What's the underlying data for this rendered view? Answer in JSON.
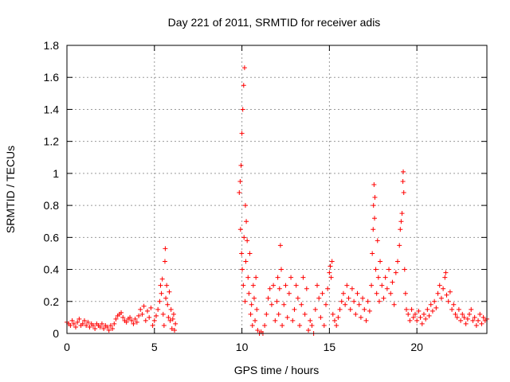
{
  "chart_data": {
    "type": "scatter",
    "title": "Day 221 of 2011, SRMTID for receiver adis",
    "xlabel": "GPS time / hours",
    "ylabel": "SRMTID / TECUs",
    "xlim": [
      0,
      24
    ],
    "ylim": [
      0,
      1.8
    ],
    "x_ticks": [
      0,
      5,
      10,
      15,
      20
    ],
    "x_tick_labels": [
      "0",
      "5",
      "10",
      "15",
      "20"
    ],
    "y_ticks": [
      0,
      0.2,
      0.4,
      0.6,
      0.8,
      1.0,
      1.2,
      1.4,
      1.6,
      1.8
    ],
    "y_tick_labels": [
      "0",
      "0.2",
      "0.4",
      "0.6",
      "0.8",
      "1",
      "1.2",
      "1.4",
      "1.6",
      "1.8"
    ],
    "grid": true,
    "marker": "+",
    "series": [
      {
        "name": "SRMTID",
        "color": "#ff0000",
        "points": [
          [
            0.0,
            0.07
          ],
          [
            0.1,
            0.06
          ],
          [
            0.2,
            0.05
          ],
          [
            0.3,
            0.08
          ],
          [
            0.4,
            0.06
          ],
          [
            0.5,
            0.04
          ],
          [
            0.6,
            0.07
          ],
          [
            0.7,
            0.09
          ],
          [
            0.8,
            0.05
          ],
          [
            0.9,
            0.06
          ],
          [
            1.0,
            0.08
          ],
          [
            1.1,
            0.05
          ],
          [
            1.2,
            0.07
          ],
          [
            1.3,
            0.04
          ],
          [
            1.4,
            0.06
          ],
          [
            1.5,
            0.05
          ],
          [
            1.6,
            0.03
          ],
          [
            1.7,
            0.06
          ],
          [
            1.8,
            0.05
          ],
          [
            1.9,
            0.04
          ],
          [
            2.0,
            0.06
          ],
          [
            2.1,
            0.03
          ],
          [
            2.2,
            0.05
          ],
          [
            2.3,
            0.04
          ],
          [
            2.4,
            0.02
          ],
          [
            2.5,
            0.05
          ],
          [
            2.6,
            0.03
          ],
          [
            2.7,
            0.06
          ],
          [
            2.8,
            0.09
          ],
          [
            2.9,
            0.11
          ],
          [
            3.0,
            0.12
          ],
          [
            3.1,
            0.13
          ],
          [
            3.2,
            0.1
          ],
          [
            3.3,
            0.08
          ],
          [
            3.4,
            0.07
          ],
          [
            3.5,
            0.09
          ],
          [
            3.6,
            0.1
          ],
          [
            3.7,
            0.08
          ],
          [
            3.8,
            0.06
          ],
          [
            3.9,
            0.09
          ],
          [
            4.0,
            0.07
          ],
          [
            4.1,
            0.11
          ],
          [
            4.2,
            0.15
          ],
          [
            4.3,
            0.12
          ],
          [
            4.4,
            0.17
          ],
          [
            4.5,
            0.08
          ],
          [
            4.6,
            0.14
          ],
          [
            4.7,
            0.1
          ],
          [
            4.8,
            0.16
          ],
          [
            4.9,
            0.05
          ],
          [
            5.0,
            0.08
          ],
          [
            5.1,
            0.11
          ],
          [
            5.2,
            0.15
          ],
          [
            5.3,
            0.2
          ],
          [
            5.35,
            0.3
          ],
          [
            5.4,
            0.25
          ],
          [
            5.45,
            0.34
          ],
          [
            5.5,
            0.12
          ],
          [
            5.55,
            0.05
          ],
          [
            5.6,
            0.45
          ],
          [
            5.62,
            0.53
          ],
          [
            5.65,
            0.22
          ],
          [
            5.7,
            0.3
          ],
          [
            5.75,
            0.18
          ],
          [
            5.8,
            0.1
          ],
          [
            5.85,
            0.26
          ],
          [
            5.9,
            0.08
          ],
          [
            5.95,
            0.15
          ],
          [
            6.0,
            0.03
          ],
          [
            6.05,
            0.09
          ],
          [
            6.1,
            0.12
          ],
          [
            6.15,
            0.02
          ],
          [
            6.2,
            0.06
          ],
          [
            9.85,
            0.88
          ],
          [
            9.9,
            0.95
          ],
          [
            9.92,
            0.65
          ],
          [
            9.95,
            1.05
          ],
          [
            9.98,
            0.5
          ],
          [
            10.0,
            1.25
          ],
          [
            10.02,
            0.4
          ],
          [
            10.05,
            1.4
          ],
          [
            10.08,
            0.3
          ],
          [
            10.1,
            1.55
          ],
          [
            10.12,
            0.6
          ],
          [
            10.15,
            1.66
          ],
          [
            10.18,
            0.2
          ],
          [
            10.2,
            0.8
          ],
          [
            10.22,
            0.45
          ],
          [
            10.25,
            0.7
          ],
          [
            10.3,
            0.58
          ],
          [
            10.35,
            0.35
          ],
          [
            10.4,
            0.25
          ],
          [
            10.45,
            0.5
          ],
          [
            10.5,
            0.12
          ],
          [
            10.55,
            0.18
          ],
          [
            10.6,
            0.05
          ],
          [
            10.65,
            0.3
          ],
          [
            10.7,
            0.22
          ],
          [
            10.75,
            0.08
          ],
          [
            10.8,
            0.35
          ],
          [
            10.85,
            0.15
          ],
          [
            10.9,
            0.02
          ],
          [
            11.0,
            0.0
          ],
          [
            11.1,
            0.01
          ],
          [
            11.2,
            0.0
          ],
          [
            11.3,
            0.05
          ],
          [
            11.4,
            0.12
          ],
          [
            11.5,
            0.22
          ],
          [
            11.6,
            0.28
          ],
          [
            11.7,
            0.18
          ],
          [
            11.8,
            0.3
          ],
          [
            11.9,
            0.08
          ],
          [
            12.0,
            0.2
          ],
          [
            12.05,
            0.35
          ],
          [
            12.1,
            0.12
          ],
          [
            12.15,
            0.28
          ],
          [
            12.2,
            0.55
          ],
          [
            12.25,
            0.4
          ],
          [
            12.3,
            0.05
          ],
          [
            12.4,
            0.18
          ],
          [
            12.5,
            0.3
          ],
          [
            12.6,
            0.1
          ],
          [
            12.7,
            0.25
          ],
          [
            12.8,
            0.35
          ],
          [
            12.9,
            0.08
          ],
          [
            13.0,
            0.15
          ],
          [
            13.1,
            0.3
          ],
          [
            13.2,
            0.22
          ],
          [
            13.3,
            0.05
          ],
          [
            13.4,
            0.18
          ],
          [
            13.5,
            0.35
          ],
          [
            13.6,
            0.12
          ],
          [
            13.7,
            0.28
          ],
          [
            13.8,
            0.02
          ],
          [
            13.9,
            0.08
          ],
          [
            14.0,
            0.05
          ],
          [
            14.1,
            0.0
          ],
          [
            14.2,
            0.15
          ],
          [
            14.3,
            0.3
          ],
          [
            14.4,
            0.22
          ],
          [
            14.5,
            0.1
          ],
          [
            14.6,
            0.25
          ],
          [
            14.7,
            0.05
          ],
          [
            14.8,
            0.18
          ],
          [
            14.9,
            0.28
          ],
          [
            15.0,
            0.38
          ],
          [
            15.05,
            0.42
          ],
          [
            15.1,
            0.35
          ],
          [
            15.15,
            0.45
          ],
          [
            15.2,
            0.12
          ],
          [
            15.3,
            0.08
          ],
          [
            15.4,
            0.05
          ],
          [
            15.5,
            0.1
          ],
          [
            15.6,
            0.15
          ],
          [
            15.7,
            0.2
          ],
          [
            15.8,
            0.25
          ],
          [
            15.9,
            0.18
          ],
          [
            16.0,
            0.3
          ],
          [
            16.1,
            0.22
          ],
          [
            16.2,
            0.15
          ],
          [
            16.3,
            0.28
          ],
          [
            16.4,
            0.2
          ],
          [
            16.5,
            0.12
          ],
          [
            16.6,
            0.25
          ],
          [
            16.7,
            0.18
          ],
          [
            16.8,
            0.1
          ],
          [
            16.9,
            0.22
          ],
          [
            17.0,
            0.15
          ],
          [
            17.1,
            0.08
          ],
          [
            17.2,
            0.2
          ],
          [
            17.3,
            0.14
          ],
          [
            17.4,
            0.3
          ],
          [
            17.45,
            0.5
          ],
          [
            17.5,
            0.65
          ],
          [
            17.52,
            0.8
          ],
          [
            17.55,
            0.93
          ],
          [
            17.58,
            0.72
          ],
          [
            17.6,
            0.85
          ],
          [
            17.65,
            0.4
          ],
          [
            17.7,
            0.25
          ],
          [
            17.75,
            0.58
          ],
          [
            17.8,
            0.35
          ],
          [
            17.85,
            0.2
          ],
          [
            17.9,
            0.45
          ],
          [
            18.0,
            0.3
          ],
          [
            18.1,
            0.22
          ],
          [
            18.2,
            0.35
          ],
          [
            18.3,
            0.28
          ],
          [
            18.4,
            0.4
          ],
          [
            18.5,
            0.25
          ],
          [
            18.6,
            0.32
          ],
          [
            18.7,
            0.18
          ],
          [
            18.8,
            0.38
          ],
          [
            18.9,
            0.45
          ],
          [
            19.0,
            0.55
          ],
          [
            19.05,
            0.65
          ],
          [
            19.1,
            0.7
          ],
          [
            19.15,
            0.75
          ],
          [
            19.2,
            0.95
          ],
          [
            19.22,
            1.01
          ],
          [
            19.25,
            0.88
          ],
          [
            19.3,
            0.4
          ],
          [
            19.35,
            0.25
          ],
          [
            19.4,
            0.15
          ],
          [
            19.5,
            0.12
          ],
          [
            19.6,
            0.08
          ],
          [
            19.7,
            0.15
          ],
          [
            19.8,
            0.1
          ],
          [
            19.9,
            0.12
          ],
          [
            20.0,
            0.08
          ],
          [
            20.1,
            0.14
          ],
          [
            20.2,
            0.1
          ],
          [
            20.3,
            0.06
          ],
          [
            20.4,
            0.12
          ],
          [
            20.5,
            0.09
          ],
          [
            20.6,
            0.15
          ],
          [
            20.7,
            0.11
          ],
          [
            20.8,
            0.18
          ],
          [
            20.9,
            0.14
          ],
          [
            21.0,
            0.2
          ],
          [
            21.1,
            0.16
          ],
          [
            21.2,
            0.25
          ],
          [
            21.3,
            0.3
          ],
          [
            21.4,
            0.22
          ],
          [
            21.5,
            0.28
          ],
          [
            21.6,
            0.35
          ],
          [
            21.65,
            0.38
          ],
          [
            21.7,
            0.24
          ],
          [
            21.8,
            0.2
          ],
          [
            21.9,
            0.26
          ],
          [
            22.0,
            0.15
          ],
          [
            22.1,
            0.18
          ],
          [
            22.2,
            0.12
          ],
          [
            22.3,
            0.1
          ],
          [
            22.4,
            0.15
          ],
          [
            22.5,
            0.08
          ],
          [
            22.6,
            0.12
          ],
          [
            22.7,
            0.1
          ],
          [
            22.8,
            0.06
          ],
          [
            22.9,
            0.09
          ],
          [
            23.0,
            0.12
          ],
          [
            23.1,
            0.15
          ],
          [
            23.2,
            0.08
          ],
          [
            23.3,
            0.1
          ],
          [
            23.4,
            0.05
          ],
          [
            23.5,
            0.08
          ],
          [
            23.6,
            0.12
          ],
          [
            23.7,
            0.06
          ],
          [
            23.8,
            0.1
          ],
          [
            23.9,
            0.08
          ],
          [
            24.0,
            0.09
          ]
        ]
      }
    ]
  }
}
